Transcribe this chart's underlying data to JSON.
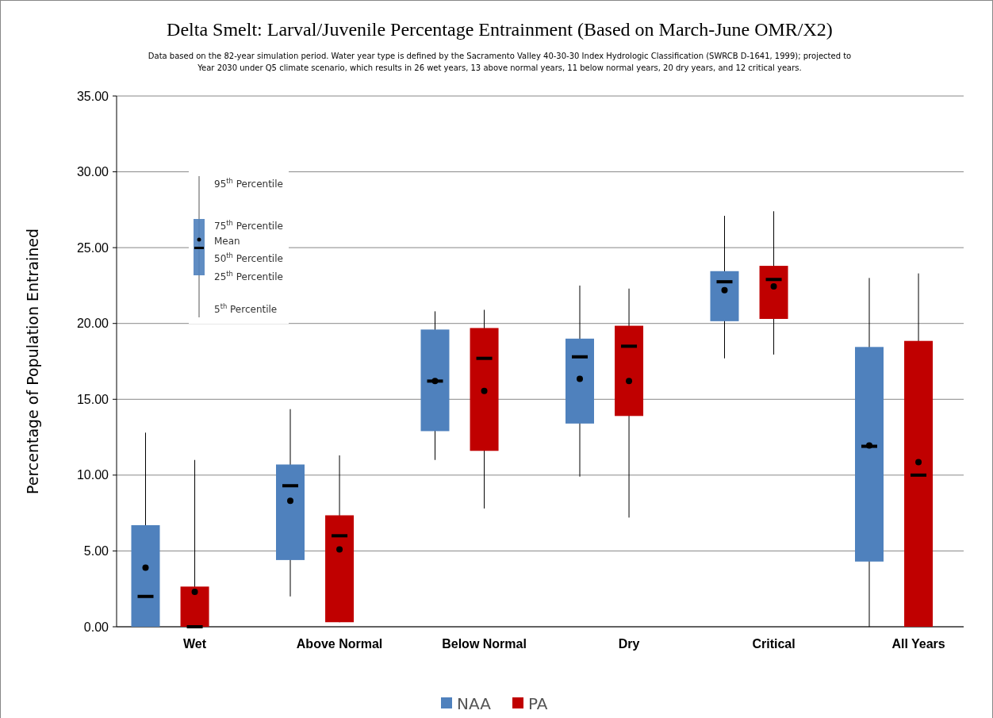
{
  "chart_data": {
    "type": "box",
    "title": "Delta Smelt: Larval/Juvenile Percentage Entrainment (Based on March-June OMR/X2)",
    "subtitle": "Data based on the 82-year simulation period.  Water year type is defined by the Sacramento Valley 40-30-30 Index Hydrologic Classification (SWRCB D-1641, 1999); projected to Year 2030 under Q5 climate scenario, which results in 26 wet years, 13 above normal years, 11 below normal years, 20 dry years, and 12 critical years.",
    "ylabel": "Percentage of Population Entrained",
    "categories": [
      "Wet",
      "Above Normal",
      "Below Normal",
      "Dry",
      "Critical",
      "All Years"
    ],
    "series": [
      {
        "name": "NAA",
        "color": "#4f81bd",
        "boxes": [
          {
            "low": 0,
            "q1": 0,
            "median": 2.0,
            "q3": 6.7,
            "high": 12.8,
            "mean": 3.9
          },
          {
            "low": 2.0,
            "q1": 4.4,
            "median": 9.3,
            "q3": 10.7,
            "high": 14.35,
            "mean": 8.3
          },
          {
            "low": 11.0,
            "q1": 12.9,
            "median": 16.2,
            "q3": 19.6,
            "high": 20.8,
            "mean": 16.2
          },
          {
            "low": 9.9,
            "q1": 13.4,
            "median": 17.8,
            "q3": 19.0,
            "high": 22.5,
            "mean": 16.35
          },
          {
            "low": 17.7,
            "q1": 20.15,
            "median": 22.75,
            "q3": 23.45,
            "high": 27.1,
            "mean": 22.2
          },
          {
            "low": 0,
            "q1": 4.3,
            "median": 11.9,
            "q3": 18.45,
            "high": 23.0,
            "mean": 11.95
          }
        ]
      },
      {
        "name": "PA",
        "color": "#c00000",
        "boxes": [
          {
            "low": 0,
            "q1": 0,
            "median": 0,
            "q3": 2.65,
            "high": 11.0,
            "mean": 2.3
          },
          {
            "low": 0.3,
            "q1": 0.3,
            "median": 6.0,
            "q3": 7.35,
            "high": 11.3,
            "mean": 5.1
          },
          {
            "low": 7.8,
            "q1": 11.6,
            "median": 17.7,
            "q3": 19.7,
            "high": 20.9,
            "mean": 15.55
          },
          {
            "low": 7.2,
            "q1": 13.9,
            "median": 18.5,
            "q3": 19.85,
            "high": 22.3,
            "mean": 16.2
          },
          {
            "low": 17.95,
            "q1": 20.3,
            "median": 22.9,
            "q3": 23.8,
            "high": 27.4,
            "mean": 22.45
          },
          {
            "low": 0,
            "q1": 0,
            "median": 10.0,
            "q3": 18.85,
            "high": 23.3,
            "mean": 10.85
          }
        ]
      }
    ],
    "ylim": [
      0,
      35
    ],
    "yticks": [
      {
        "value": 0,
        "label": "0.00"
      },
      {
        "value": 5,
        "label": "5.00"
      },
      {
        "value": 10,
        "label": "10.00"
      },
      {
        "value": 15,
        "label": "15.00"
      },
      {
        "value": 20,
        "label": "20.00"
      },
      {
        "value": 25,
        "label": "25.00"
      },
      {
        "value": 30,
        "label": "30.00"
      },
      {
        "value": 35,
        "label": "35.00"
      }
    ],
    "grid": "y",
    "legend": "bottom",
    "annotations": [
      "95$^{th}$ Percentile",
      "75$^{th}$ Percentile",
      "Mean",
      "50$^{th}$ Percentile",
      "25$^{th}$ Percentile",
      "5$^{th}$ Percentile"
    ]
  }
}
